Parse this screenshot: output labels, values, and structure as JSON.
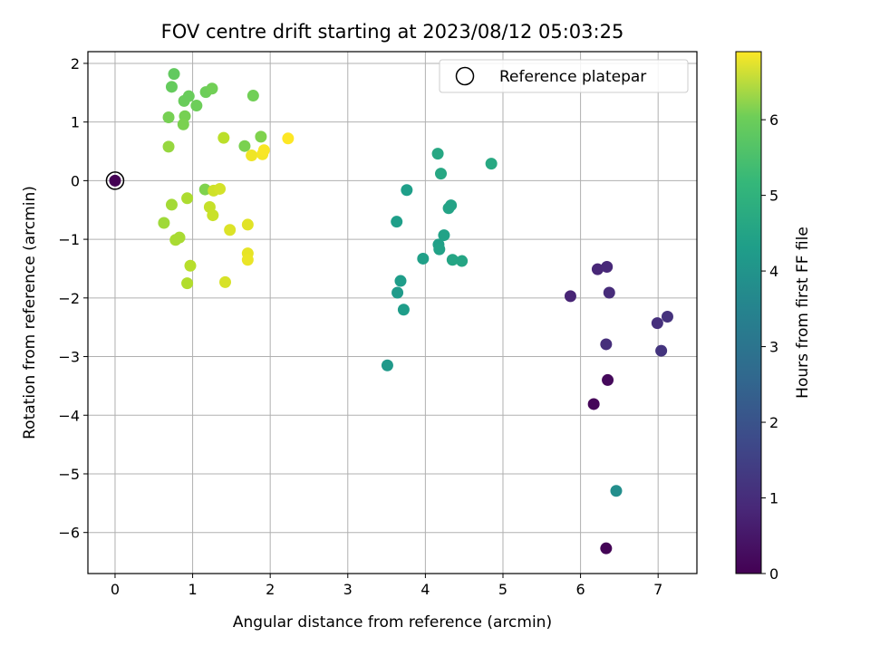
{
  "chart_data": {
    "type": "scatter",
    "title": "FOV centre drift starting at 2023/08/12 05:03:25",
    "xlabel": "Angular distance from reference (arcmin)",
    "ylabel": "Rotation from reference (arcmin)",
    "xlim": [
      -0.35,
      7.5
    ],
    "ylim": [
      -6.7,
      2.2
    ],
    "xticks": [
      0,
      1,
      2,
      3,
      4,
      5,
      6,
      7
    ],
    "yticks": [
      -6,
      -5,
      -4,
      -3,
      -2,
      -1,
      0,
      1,
      2
    ],
    "grid": true,
    "legend": {
      "position": "top-right",
      "label": "Reference platepar"
    },
    "colorbar": {
      "label": "Hours from first FF file",
      "range": [
        0,
        6.9
      ],
      "ticks": [
        0,
        1,
        2,
        3,
        4,
        5,
        6
      ],
      "colormap": "viridis"
    },
    "reference_point": {
      "x": 0,
      "y": 0
    },
    "points": [
      {
        "x": 0.0,
        "y": 0.0,
        "c": 0.0
      },
      {
        "x": 6.33,
        "y": -6.27,
        "c": 0.05
      },
      {
        "x": 6.17,
        "y": -3.81,
        "c": 0.1
      },
      {
        "x": 6.35,
        "y": -3.4,
        "c": 0.15
      },
      {
        "x": 5.87,
        "y": -1.97,
        "c": 0.7
      },
      {
        "x": 6.22,
        "y": -1.51,
        "c": 0.75
      },
      {
        "x": 6.34,
        "y": -1.47,
        "c": 0.8
      },
      {
        "x": 6.37,
        "y": -1.91,
        "c": 0.85
      },
      {
        "x": 6.33,
        "y": -2.79,
        "c": 0.9
      },
      {
        "x": 6.99,
        "y": -2.43,
        "c": 0.95
      },
      {
        "x": 7.12,
        "y": -2.32,
        "c": 1.0
      },
      {
        "x": 7.04,
        "y": -2.9,
        "c": 1.05
      },
      {
        "x": 6.46,
        "y": -5.29,
        "c": 3.4
      },
      {
        "x": 3.51,
        "y": -3.15,
        "c": 3.7
      },
      {
        "x": 3.64,
        "y": -1.91,
        "c": 3.75
      },
      {
        "x": 3.72,
        "y": -2.2,
        "c": 3.8
      },
      {
        "x": 3.68,
        "y": -1.71,
        "c": 3.8
      },
      {
        "x": 3.63,
        "y": -0.7,
        "c": 3.85
      },
      {
        "x": 3.76,
        "y": -0.16,
        "c": 3.85
      },
      {
        "x": 3.97,
        "y": -1.33,
        "c": 3.9
      },
      {
        "x": 4.17,
        "y": -1.09,
        "c": 3.9
      },
      {
        "x": 4.18,
        "y": -1.17,
        "c": 3.95
      },
      {
        "x": 4.24,
        "y": -0.93,
        "c": 3.95
      },
      {
        "x": 4.3,
        "y": -0.47,
        "c": 4.0
      },
      {
        "x": 4.33,
        "y": -0.42,
        "c": 4.0
      },
      {
        "x": 4.35,
        "y": -1.35,
        "c": 4.05
      },
      {
        "x": 4.47,
        "y": -1.37,
        "c": 4.05
      },
      {
        "x": 4.16,
        "y": 0.46,
        "c": 4.1
      },
      {
        "x": 4.2,
        "y": 0.12,
        "c": 4.1
      },
      {
        "x": 4.85,
        "y": 0.29,
        "c": 4.15
      },
      {
        "x": 0.76,
        "y": 1.82,
        "c": 5.2
      },
      {
        "x": 0.73,
        "y": 1.6,
        "c": 5.25
      },
      {
        "x": 0.95,
        "y": 1.44,
        "c": 5.3
      },
      {
        "x": 0.89,
        "y": 1.36,
        "c": 5.3
      },
      {
        "x": 1.05,
        "y": 1.28,
        "c": 5.35
      },
      {
        "x": 1.17,
        "y": 1.51,
        "c": 5.35
      },
      {
        "x": 1.25,
        "y": 1.57,
        "c": 5.4
      },
      {
        "x": 1.78,
        "y": 1.45,
        "c": 5.4
      },
      {
        "x": 0.69,
        "y": 1.08,
        "c": 5.45
      },
      {
        "x": 0.9,
        "y": 1.1,
        "c": 5.45
      },
      {
        "x": 0.88,
        "y": 0.96,
        "c": 5.5
      },
      {
        "x": 1.67,
        "y": 0.59,
        "c": 5.5
      },
      {
        "x": 1.88,
        "y": 0.75,
        "c": 5.55
      },
      {
        "x": 1.16,
        "y": -0.15,
        "c": 5.55
      },
      {
        "x": 0.69,
        "y": 0.58,
        "c": 5.8
      },
      {
        "x": 0.63,
        "y": -0.72,
        "c": 5.9
      },
      {
        "x": 0.73,
        "y": -0.41,
        "c": 5.95
      },
      {
        "x": 0.78,
        "y": -1.01,
        "c": 6.0
      },
      {
        "x": 0.83,
        "y": -0.97,
        "c": 6.0
      },
      {
        "x": 0.93,
        "y": -0.3,
        "c": 6.05
      },
      {
        "x": 0.93,
        "y": -1.75,
        "c": 6.1
      },
      {
        "x": 0.97,
        "y": -1.45,
        "c": 6.15
      },
      {
        "x": 1.4,
        "y": 0.73,
        "c": 6.2
      },
      {
        "x": 1.22,
        "y": -0.45,
        "c": 6.3
      },
      {
        "x": 1.26,
        "y": -0.59,
        "c": 6.35
      },
      {
        "x": 1.27,
        "y": -0.17,
        "c": 6.4
      },
      {
        "x": 1.35,
        "y": -0.14,
        "c": 6.45
      },
      {
        "x": 1.42,
        "y": -1.73,
        "c": 6.5
      },
      {
        "x": 1.48,
        "y": -0.84,
        "c": 6.55
      },
      {
        "x": 1.71,
        "y": -0.75,
        "c": 6.6
      },
      {
        "x": 1.71,
        "y": -1.24,
        "c": 6.65
      },
      {
        "x": 1.71,
        "y": -1.35,
        "c": 6.7
      },
      {
        "x": 1.76,
        "y": 0.43,
        "c": 6.75
      },
      {
        "x": 1.9,
        "y": 0.45,
        "c": 6.8
      },
      {
        "x": 1.92,
        "y": 0.52,
        "c": 6.85
      },
      {
        "x": 2.23,
        "y": 0.72,
        "c": 6.9
      }
    ]
  }
}
